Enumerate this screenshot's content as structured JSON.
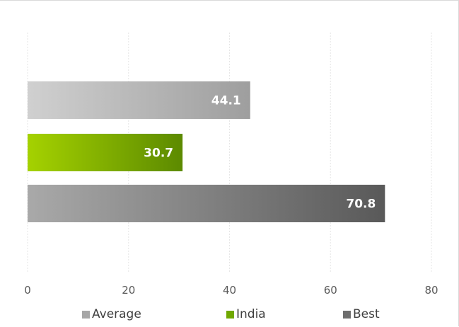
{
  "chart_data": {
    "type": "bar",
    "orientation": "horizontal",
    "categories": [
      "Average",
      "India",
      "Best"
    ],
    "series": [
      {
        "name": "Average",
        "value": 44.1,
        "label": "44.1",
        "color": "#a6a6a6",
        "gradient": [
          "#d0d0d0",
          "#9e9e9e"
        ]
      },
      {
        "name": "India",
        "value": 30.7,
        "label": "30.7",
        "color": "#70a800",
        "gradient": [
          "#a5d200",
          "#5c8a00"
        ]
      },
      {
        "name": "Best",
        "value": 70.8,
        "label": "70.8",
        "color": "#6e6e6e",
        "gradient": [
          "#a9a9a9",
          "#595959"
        ]
      }
    ],
    "xlim": [
      0,
      80
    ],
    "x_ticks": [
      0,
      20,
      40,
      60,
      80
    ],
    "x_tick_labels": [
      "0",
      "20",
      "40",
      "60",
      "80"
    ],
    "grid": true,
    "legend_position": "bottom",
    "title": "",
    "xlabel": "",
    "ylabel": ""
  },
  "legend": [
    {
      "label": "Average",
      "color": "#a6a6a6"
    },
    {
      "label": "India",
      "color": "#70a800"
    },
    {
      "label": "Best",
      "color": "#6e6e6e"
    }
  ]
}
